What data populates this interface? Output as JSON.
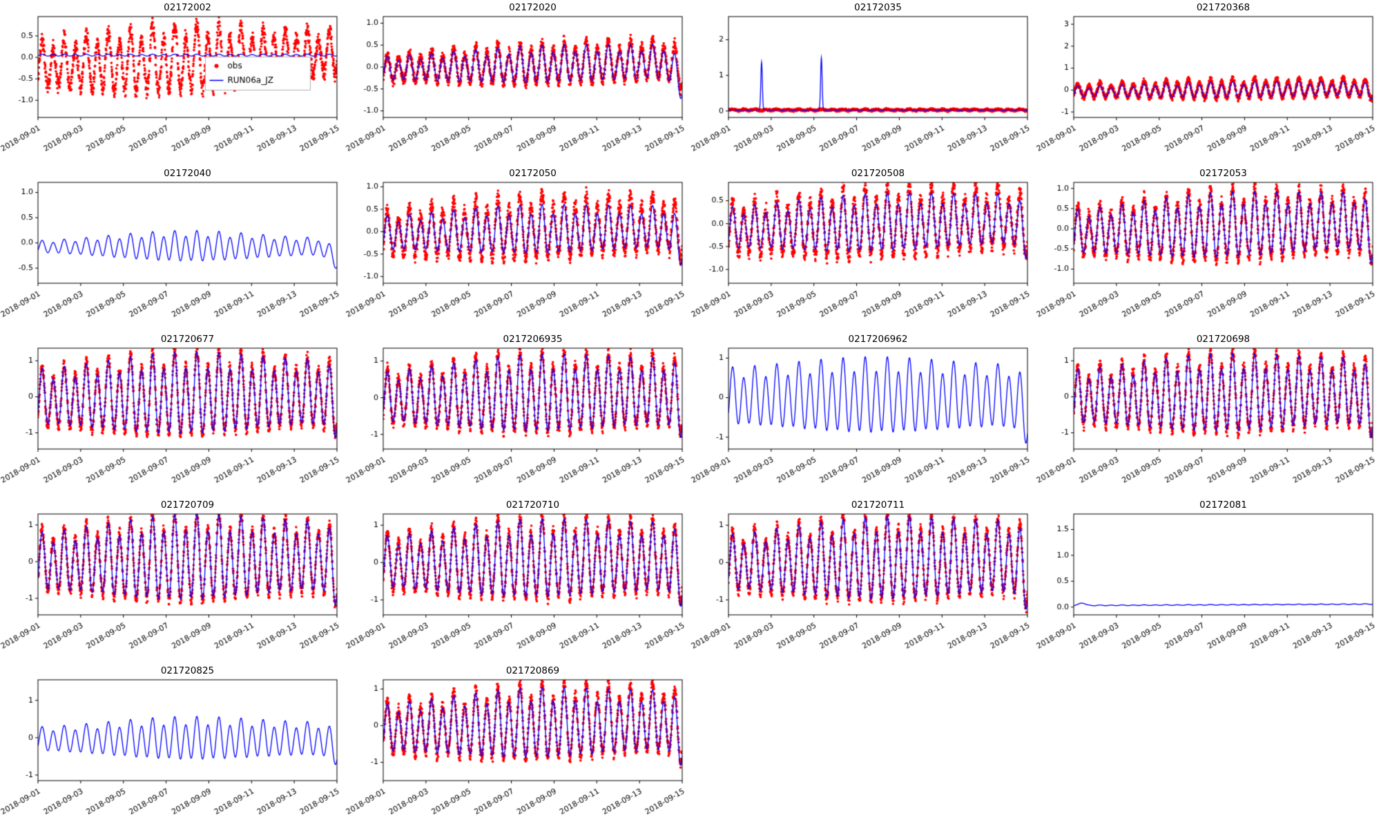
{
  "figure": {
    "background": "#ffffff",
    "text_color": "#000000",
    "axes_color": "#000000"
  },
  "chart_data": {
    "type": "line",
    "description": "Grid of 18 time-series subplots comparing observed water levels (red scatter) vs model run RUN06a_JZ (blue line), 2018-09-01 to 2018-09-15",
    "x_start": "2018-09-01",
    "x_end": "2018-09-15",
    "x_range_days": 14,
    "period_days": 0.5175,
    "x_ticks": [
      "2018-09-01",
      "2018-09-03",
      "2018-09-05",
      "2018-09-07",
      "2018-09-09",
      "2018-09-11",
      "2018-09-13",
      "2018-09-15"
    ],
    "x_tick_days": [
      0,
      2,
      4,
      6,
      8,
      10,
      12,
      14
    ],
    "legend": {
      "panel": "02172002",
      "entries": [
        {
          "label": "obs",
          "color": "#ff0000",
          "marker": "dot"
        },
        {
          "label": "RUN06a_JZ",
          "color": "#0000ff",
          "marker": "line"
        }
      ]
    },
    "panels": [
      {
        "id": "02172002",
        "yticks": [
          -1.0,
          -0.5,
          0.0,
          0.5
        ],
        "ylim": [
          -1.4,
          0.95
        ],
        "legend": true,
        "series": [
          {
            "name": "obs",
            "type": "scatter",
            "color": "#ff0000",
            "offset": -0.2,
            "trend": 0.02,
            "amp0": 0.6,
            "amp1": 0.55,
            "mod": 0.18,
            "noise": 0.16
          },
          {
            "name": "RUN06a_JZ",
            "type": "line",
            "color": "#0000ff",
            "offset": 0.05,
            "amp0": 0.02,
            "amp1": 0.02
          }
        ]
      },
      {
        "id": "02172020",
        "yticks": [
          -1.0,
          -0.5,
          0.0,
          0.5,
          1.0
        ],
        "ylim": [
          -1.15,
          1.15
        ],
        "series": [
          {
            "name": "obs",
            "type": "scatter",
            "color": "#ff0000",
            "offset": -0.05,
            "trend": 0.015,
            "amp0": 0.3,
            "amp1": 0.45,
            "mod": 0.12,
            "noise": 0.1,
            "enddip": 0.3
          },
          {
            "name": "RUN06a_JZ",
            "type": "line",
            "color": "#0000ff",
            "offset": -0.05,
            "trend": 0.012,
            "amp0": 0.27,
            "amp1": 0.4,
            "mod": 0.12,
            "enddip": 0.55
          }
        ]
      },
      {
        "id": "02172035",
        "yticks": [
          0,
          1,
          2
        ],
        "ylim": [
          -0.18,
          2.65
        ],
        "series": [
          {
            "name": "obs",
            "type": "scatter",
            "color": "#ff0000",
            "offset": 0.03,
            "amp0": 0.015,
            "amp1": 0.015,
            "noise": 0.025
          },
          {
            "name": "RUN06a_JZ",
            "type": "line",
            "color": "#0000ff",
            "offset": 0.03,
            "amp0": 0.01,
            "amp1": 0.01,
            "spikes": [
              {
                "t": 1.55,
                "h": 1.35,
                "w": 0.05
              },
              {
                "t": 4.35,
                "h": 1.45,
                "w": 0.05
              }
            ]
          }
        ]
      },
      {
        "id": "021720368",
        "yticks": [
          -1,
          0,
          1,
          2,
          3
        ],
        "ylim": [
          -1.25,
          3.35
        ],
        "series": [
          {
            "name": "obs",
            "type": "scatter",
            "color": "#ff0000",
            "offset": -0.05,
            "trend": 0.012,
            "amp0": 0.3,
            "amp1": 0.42,
            "mod": 0.12,
            "noise": 0.1,
            "enddip": 0.2
          },
          {
            "name": "RUN06a_JZ",
            "type": "line",
            "color": "#0000ff",
            "offset": -0.08,
            "trend": 0.01,
            "amp0": 0.25,
            "amp1": 0.33,
            "mod": 0.12,
            "enddip": 0.2
          }
        ]
      },
      {
        "id": "02172040",
        "yticks": [
          -0.5,
          0.0,
          0.5,
          1.0
        ],
        "ylim": [
          -0.8,
          1.2
        ],
        "series": [
          {
            "name": "RUN06a_JZ",
            "type": "line",
            "color": "#0000ff",
            "offset": -0.08,
            "amp0": 0.16,
            "amp1": 0.24,
            "mod": 0.35,
            "enddip": 0.3
          }
        ]
      },
      {
        "id": "02172050",
        "yticks": [
          -1.0,
          -0.5,
          0.0,
          0.5,
          1.0
        ],
        "ylim": [
          -1.15,
          1.1
        ],
        "series": [
          {
            "name": "obs",
            "type": "scatter",
            "color": "#ff0000",
            "offset": -0.05,
            "trend": 0.015,
            "amp0": 0.5,
            "amp1": 0.62,
            "mod": 0.12,
            "noise": 0.13,
            "enddip": 0.3
          },
          {
            "name": "RUN06a_JZ",
            "type": "line",
            "color": "#0000ff",
            "offset": -0.05,
            "trend": 0.01,
            "amp0": 0.38,
            "amp1": 0.48,
            "mod": 0.12,
            "enddip": 0.45
          }
        ]
      },
      {
        "id": "021720508",
        "yticks": [
          -1.0,
          -0.5,
          0.0,
          0.5
        ],
        "ylim": [
          -1.3,
          0.9
        ],
        "series": [
          {
            "name": "obs",
            "type": "scatter",
            "color": "#ff0000",
            "offset": -0.15,
            "trend": 0.02,
            "amp0": 0.55,
            "amp1": 0.68,
            "mod": 0.12,
            "noise": 0.13,
            "enddip": 0.3
          },
          {
            "name": "RUN06a_JZ",
            "type": "line",
            "color": "#0000ff",
            "offset": -0.12,
            "trend": 0.015,
            "amp0": 0.45,
            "amp1": 0.55,
            "mod": 0.12,
            "enddip": 0.4
          }
        ]
      },
      {
        "id": "02172053",
        "yticks": [
          -1.0,
          -0.5,
          0.0,
          0.5,
          1.0
        ],
        "ylim": [
          -1.35,
          1.15
        ],
        "series": [
          {
            "name": "obs",
            "type": "scatter",
            "color": "#ff0000",
            "offset": -0.1,
            "trend": 0.02,
            "amp0": 0.6,
            "amp1": 0.8,
            "mod": 0.13,
            "noise": 0.13,
            "enddip": 0.35
          },
          {
            "name": "RUN06a_JZ",
            "type": "line",
            "color": "#0000ff",
            "offset": -0.1,
            "trend": 0.02,
            "amp0": 0.55,
            "amp1": 0.72,
            "mod": 0.13,
            "enddip": 0.45
          }
        ]
      },
      {
        "id": "021720677",
        "yticks": [
          -1,
          0,
          1
        ],
        "ylim": [
          -1.45,
          1.35
        ],
        "series": [
          {
            "name": "obs",
            "type": "scatter",
            "color": "#ff0000",
            "offset": -0.05,
            "trend": 0.01,
            "amp0": 0.85,
            "amp1": 1.0,
            "mod": 0.15,
            "noise": 0.13,
            "enddip": 0.35
          },
          {
            "name": "RUN06a_JZ",
            "type": "line",
            "color": "#0000ff",
            "offset": -0.05,
            "trend": 0.01,
            "amp0": 0.8,
            "amp1": 0.95,
            "mod": 0.15,
            "enddip": 0.45
          }
        ]
      },
      {
        "id": "0217206935",
        "yticks": [
          -1,
          0,
          1
        ],
        "ylim": [
          -1.4,
          1.35
        ],
        "series": [
          {
            "name": "obs",
            "type": "scatter",
            "color": "#ff0000",
            "offset": -0.02,
            "trend": 0.012,
            "amp0": 0.75,
            "amp1": 1.0,
            "mod": 0.13,
            "noise": 0.13,
            "enddip": 0.3
          },
          {
            "name": "RUN06a_JZ",
            "type": "line",
            "color": "#0000ff",
            "offset": -0.02,
            "trend": 0.01,
            "amp0": 0.7,
            "amp1": 0.95,
            "mod": 0.13,
            "enddip": 0.4
          }
        ]
      },
      {
        "id": "0217206962",
        "yticks": [
          -1,
          0,
          1
        ],
        "ylim": [
          -1.3,
          1.25
        ],
        "series": [
          {
            "name": "RUN06a_JZ",
            "type": "line",
            "color": "#0000ff",
            "offset": 0.0,
            "amp0": 0.72,
            "amp1": 0.8,
            "mod": 0.12,
            "enddip": 0.5
          }
        ]
      },
      {
        "id": "021720698",
        "yticks": [
          -1,
          0,
          1
        ],
        "ylim": [
          -1.45,
          1.35
        ],
        "series": [
          {
            "name": "obs",
            "type": "scatter",
            "color": "#ff0000",
            "offset": -0.03,
            "trend": 0.012,
            "amp0": 0.8,
            "amp1": 1.0,
            "mod": 0.13,
            "noise": 0.13,
            "enddip": 0.35
          },
          {
            "name": "RUN06a_JZ",
            "type": "line",
            "color": "#0000ff",
            "offset": -0.03,
            "trend": 0.01,
            "amp0": 0.75,
            "amp1": 0.95,
            "mod": 0.13,
            "enddip": 0.45
          }
        ]
      },
      {
        "id": "021720709",
        "yticks": [
          -1,
          0,
          1
        ],
        "ylim": [
          -1.45,
          1.3
        ],
        "series": [
          {
            "name": "obs",
            "type": "scatter",
            "color": "#ff0000",
            "offset": -0.03,
            "trend": 0.01,
            "amp0": 0.85,
            "amp1": 1.05,
            "mod": 0.15,
            "noise": 0.13,
            "enddip": 0.4
          },
          {
            "name": "RUN06a_JZ",
            "type": "line",
            "color": "#0000ff",
            "offset": -0.03,
            "trend": 0.01,
            "amp0": 0.8,
            "amp1": 1.0,
            "mod": 0.15,
            "enddip": 0.5
          }
        ]
      },
      {
        "id": "021720710",
        "yticks": [
          -1,
          0,
          1
        ],
        "ylim": [
          -1.4,
          1.3
        ],
        "series": [
          {
            "name": "obs",
            "type": "scatter",
            "color": "#ff0000",
            "offset": -0.03,
            "trend": 0.012,
            "amp0": 0.75,
            "amp1": 1.0,
            "mod": 0.13,
            "noise": 0.13,
            "enddip": 0.4
          },
          {
            "name": "RUN06a_JZ",
            "type": "line",
            "color": "#0000ff",
            "offset": -0.03,
            "trend": 0.01,
            "amp0": 0.7,
            "amp1": 0.95,
            "mod": 0.13,
            "enddip": 0.5
          }
        ]
      },
      {
        "id": "021720711",
        "yticks": [
          -1,
          0,
          1
        ],
        "ylim": [
          -1.4,
          1.3
        ],
        "series": [
          {
            "name": "obs",
            "type": "scatter",
            "color": "#ff0000",
            "offset": -0.03,
            "trend": 0.012,
            "amp0": 0.8,
            "amp1": 1.05,
            "mod": 0.13,
            "noise": 0.13,
            "enddip": 0.45
          },
          {
            "name": "RUN06a_JZ",
            "type": "line",
            "color": "#0000ff",
            "offset": -0.03,
            "trend": 0.01,
            "amp0": 0.75,
            "amp1": 1.0,
            "mod": 0.13,
            "enddip": 0.55
          }
        ]
      },
      {
        "id": "02172081",
        "yticks": [
          0.0,
          0.5,
          1.0,
          1.5
        ],
        "ylim": [
          -0.15,
          1.8
        ],
        "series": [
          {
            "name": "RUN06a_JZ",
            "type": "line",
            "color": "#0000ff",
            "offset": 0.03,
            "trend": 0.002,
            "amp0": 0.006,
            "amp1": 0.006,
            "spikes": [
              {
                "t": 0.4,
                "h": 0.05,
                "w": 0.2
              }
            ]
          }
        ]
      },
      {
        "id": "021720825",
        "yticks": [
          -1,
          0,
          1
        ],
        "ylim": [
          -1.15,
          1.55
        ],
        "series": [
          {
            "name": "RUN06a_JZ",
            "type": "line",
            "color": "#0000ff",
            "offset": -0.05,
            "amp0": 0.35,
            "amp1": 0.5,
            "mod": 0.2,
            "enddip": 0.3
          }
        ]
      },
      {
        "id": "021720869",
        "yticks": [
          -1,
          0,
          1
        ],
        "ylim": [
          -1.5,
          1.25
        ],
        "series": [
          {
            "name": "obs",
            "type": "scatter",
            "color": "#ff0000",
            "offset": -0.1,
            "trend": 0.02,
            "amp0": 0.7,
            "amp1": 0.95,
            "mod": 0.13,
            "noise": 0.13,
            "enddip": 0.4
          },
          {
            "name": "RUN06a_JZ",
            "type": "line",
            "color": "#0000ff",
            "offset": -0.1,
            "trend": 0.015,
            "amp0": 0.65,
            "amp1": 0.85,
            "mod": 0.13,
            "enddip": 0.5
          }
        ]
      }
    ]
  }
}
